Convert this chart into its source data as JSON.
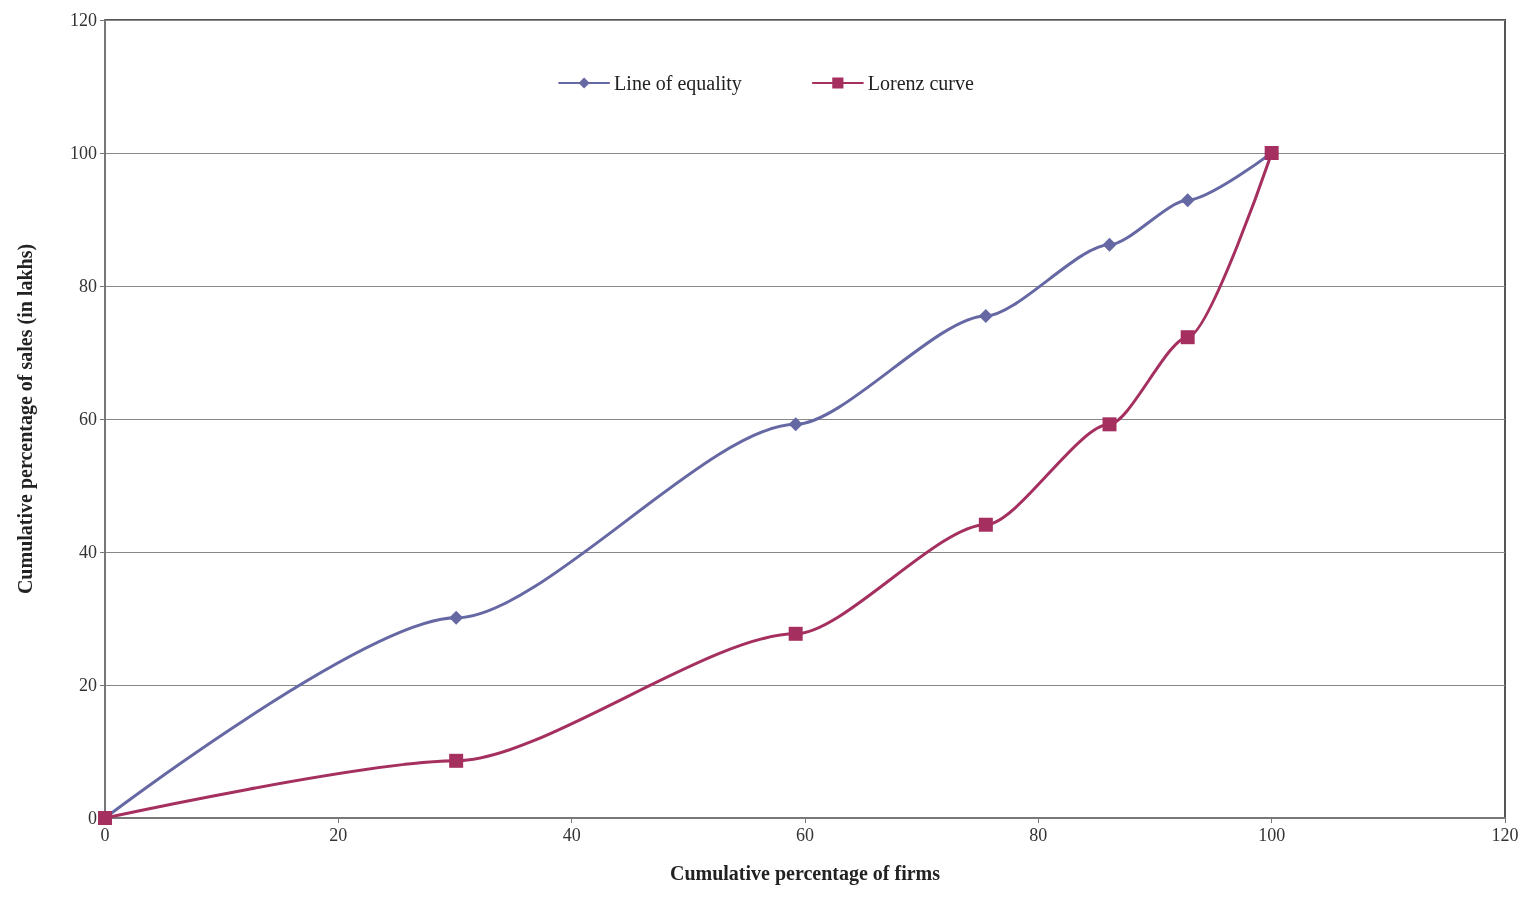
{
  "chart_data": {
    "type": "line",
    "xlabel": "Cumulative percentage of firms",
    "ylabel": "Cumulative percentage of sales (in lakhs)",
    "xlim": [
      0,
      120
    ],
    "xticks": [
      0,
      20,
      40,
      60,
      80,
      100,
      120
    ],
    "ylim": [
      0,
      120
    ],
    "yticks": [
      0,
      20,
      40,
      60,
      80,
      100,
      120
    ],
    "grid": "y",
    "legend": "top",
    "series": [
      {
        "name": "Line of equality",
        "color": "#6668a4",
        "marker": "diamond",
        "x": [
          0,
          30.1,
          59.2,
          75.5,
          86.1,
          92.8,
          100
        ],
        "values": [
          0,
          30.1,
          59.2,
          75.5,
          86.2,
          92.9,
          100
        ]
      },
      {
        "name": "Lorenz curve",
        "color": "#a5305f",
        "marker": "square",
        "x": [
          0,
          30.1,
          59.2,
          75.5,
          86.1,
          92.8,
          100
        ],
        "values": [
          0,
          8.6,
          27.7,
          44.1,
          59.2,
          72.3,
          100
        ]
      }
    ]
  }
}
